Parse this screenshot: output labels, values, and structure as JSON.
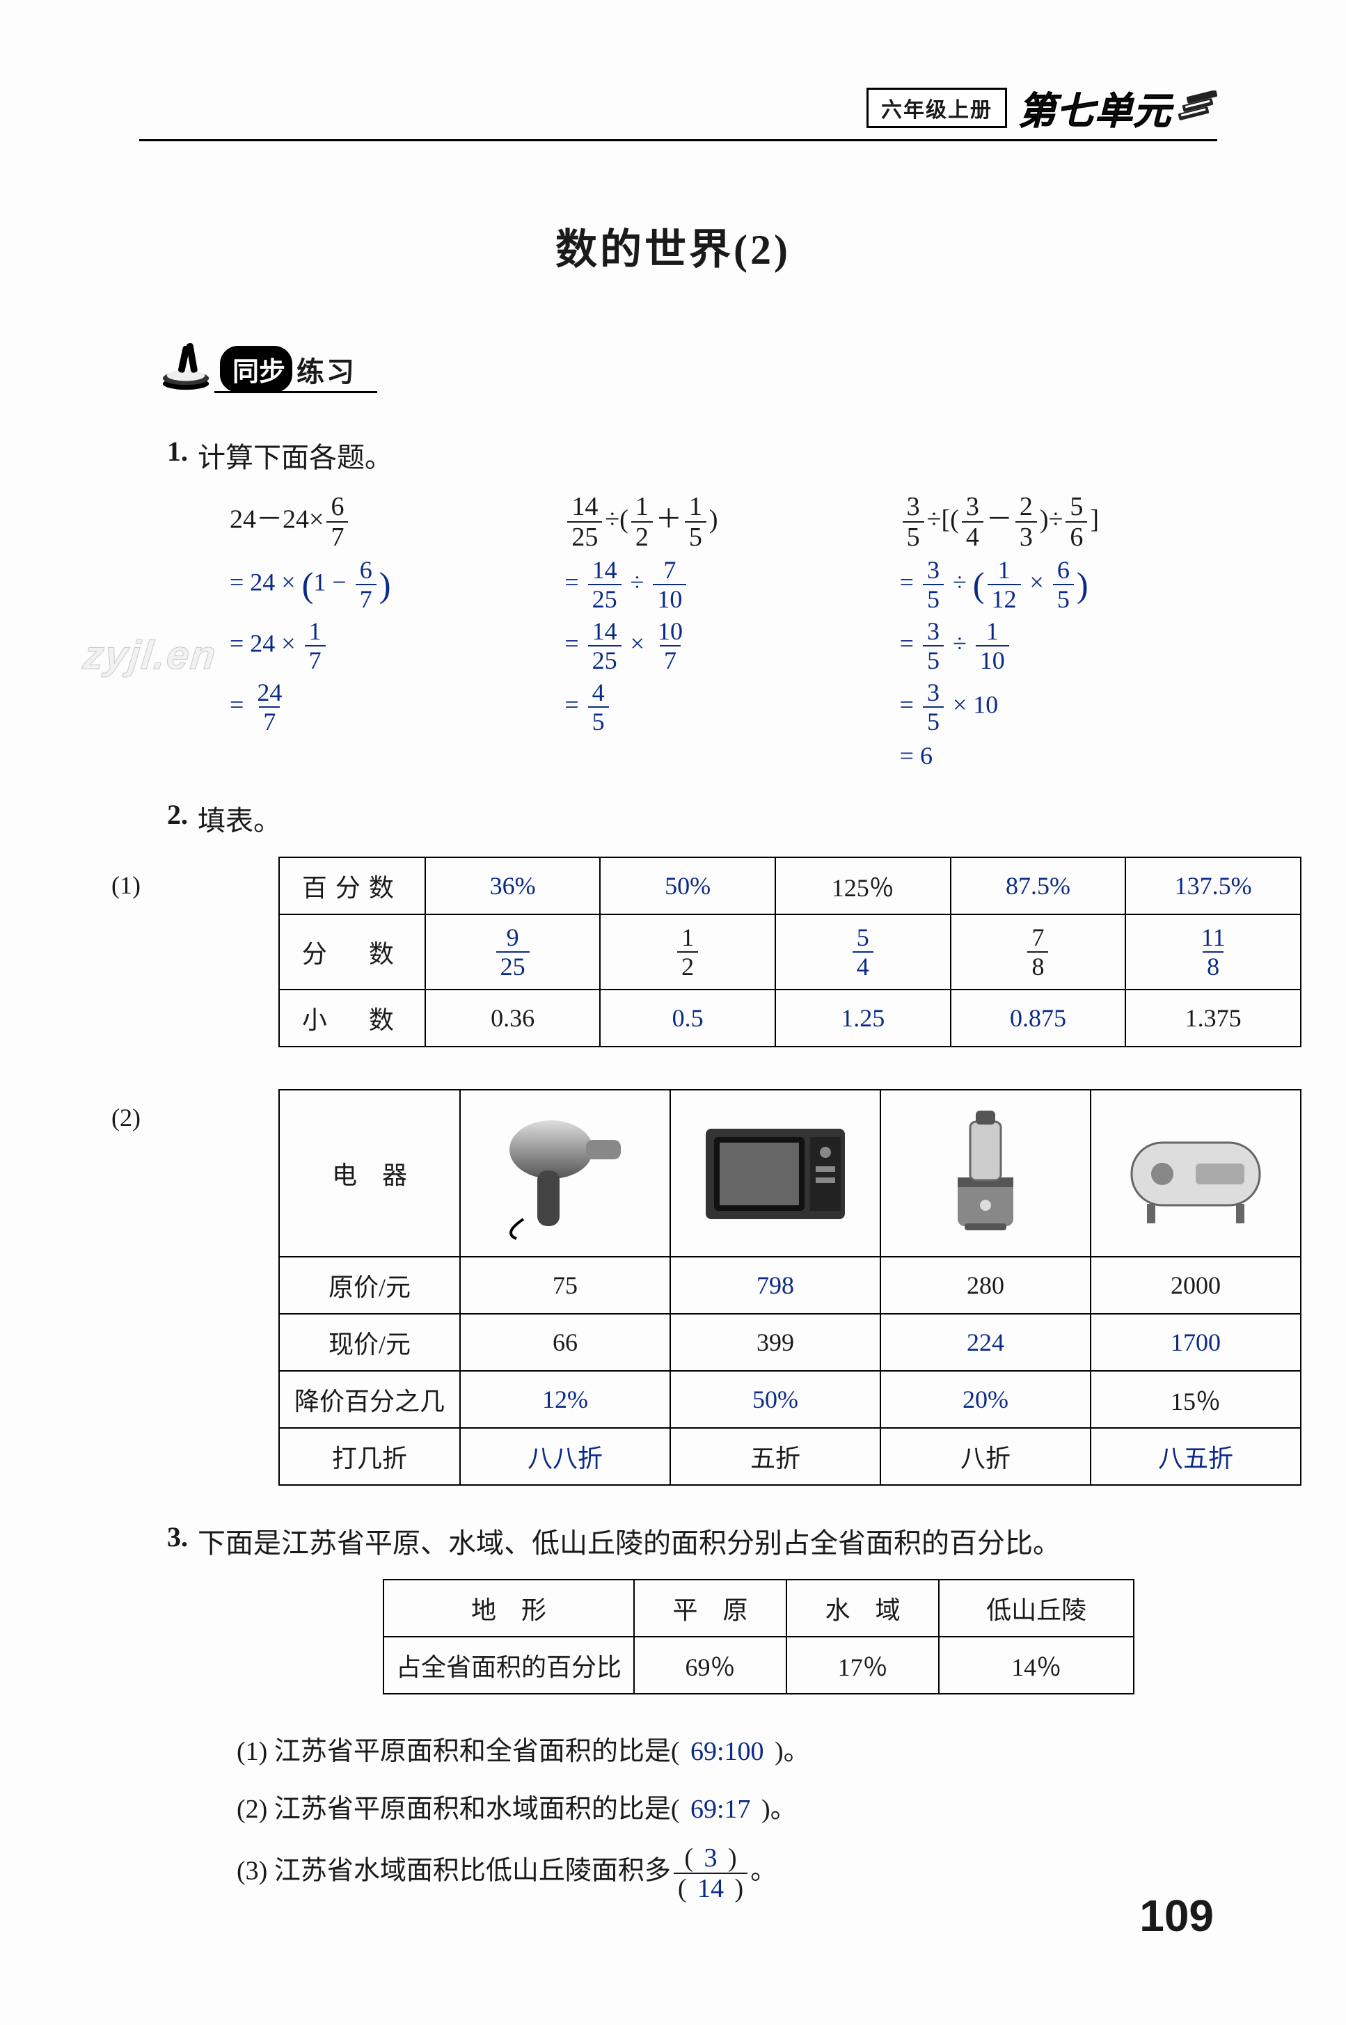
{
  "header": {
    "grade_label": "六年级上册",
    "unit_label": "第七单元"
  },
  "page_title": "数的世界(2)",
  "section_label": {
    "dark": "同步",
    "light": "练习"
  },
  "watermark": "zyjl.en",
  "colors": {
    "answer": "#0a2a88",
    "text": "#1a1a1a",
    "table_border": "#000000",
    "background": "#fdfdfd"
  },
  "problems": {
    "p1": {
      "num": "1.",
      "text": "计算下面各题。",
      "cols": [
        {
          "given": {
            "raw": "24－24×",
            "frac": [
              "6",
              "7"
            ]
          },
          "steps": [
            {
              "pre": "= 24 × ",
              "paren_l": "(",
              "mid": "1 − ",
              "frac": [
                "6",
                "7"
              ],
              "paren_r": ")"
            },
            {
              "pre": "= 24 × ",
              "frac": [
                "1",
                "7"
              ]
            },
            {
              "pre": "= ",
              "frac": [
                "24",
                "7"
              ]
            }
          ]
        },
        {
          "given": {
            "frac1": [
              "14",
              "25"
            ],
            "mid": "÷(",
            "frac2": [
              "1",
              "2"
            ],
            "mid2": "＋",
            "frac3": [
              "1",
              "5"
            ],
            "end": ")"
          },
          "steps": [
            {
              "pre": "= ",
              "frac1": [
                "14",
                "25"
              ],
              "mid": " ÷ ",
              "frac2": [
                "7",
                "10"
              ]
            },
            {
              "pre": "= ",
              "frac1": [
                "14",
                "25"
              ],
              "mid": " × ",
              "frac2": [
                "10",
                "7"
              ]
            },
            {
              "pre": "= ",
              "frac1": [
                "4",
                "5"
              ]
            }
          ]
        },
        {
          "given": {
            "frac1": [
              "3",
              "5"
            ],
            "mid": "÷[(",
            "frac2": [
              "3",
              "4"
            ],
            "mid2": "－",
            "frac3": [
              "2",
              "3"
            ],
            "mid3": ")÷",
            "frac4": [
              "5",
              "6"
            ],
            "end": "]"
          },
          "steps": [
            {
              "pre": "= ",
              "frac1": [
                "3",
                "5"
              ],
              "mid": " ÷ ",
              "paren_l": "(",
              "frac2": [
                "1",
                "12"
              ],
              "mid2": " × ",
              "frac3": [
                "6",
                "5"
              ],
              "paren_r": ")"
            },
            {
              "pre": "= ",
              "frac1": [
                "3",
                "5"
              ],
              "mid": " ÷ ",
              "frac2": [
                "1",
                "10"
              ]
            },
            {
              "pre": "= ",
              "frac1": [
                "3",
                "5"
              ],
              "mid": " × 10"
            },
            {
              "pre": "= 6"
            }
          ]
        }
      ]
    },
    "p2": {
      "num": "2.",
      "text": "填表。",
      "t1": {
        "label": "(1)",
        "rows": [
          {
            "h": "百分数",
            "cells": [
              "36%",
              "50%",
              "125％",
              "87.5%",
              "137.5%"
            ],
            "blue": [
              true,
              true,
              false,
              true,
              true
            ]
          },
          {
            "h": "分　数",
            "cells": [
              [
                "9",
                "25"
              ],
              [
                "1",
                "2"
              ],
              [
                "5",
                "4"
              ],
              [
                "7",
                "8"
              ],
              [
                "11",
                "8"
              ]
            ],
            "blue": [
              true,
              false,
              true,
              false,
              true
            ]
          },
          {
            "h": "小　数",
            "cells": [
              "0.36",
              "0.5",
              "1.25",
              "0.875",
              "1.375"
            ],
            "blue": [
              false,
              true,
              true,
              true,
              false
            ]
          }
        ]
      },
      "t2": {
        "label": "(2)",
        "header_cells": [
          "电　器",
          "hairdryer",
          "microwave",
          "blender",
          "heater"
        ],
        "rows": [
          {
            "h": "原价/元",
            "cells": [
              "75",
              "798",
              "280",
              "2000"
            ],
            "blue": [
              false,
              true,
              false,
              false
            ]
          },
          {
            "h": "现价/元",
            "cells": [
              "66",
              "399",
              "224",
              "1700"
            ],
            "blue": [
              false,
              false,
              true,
              true
            ]
          },
          {
            "h": "降价百分之几",
            "cells": [
              "12%",
              "50%",
              "20%",
              "15％"
            ],
            "blue": [
              true,
              true,
              true,
              false
            ]
          },
          {
            "h": "打几折",
            "cells": [
              "八八折",
              "五折",
              "八折",
              "八五折"
            ],
            "blue": [
              true,
              false,
              false,
              true
            ]
          }
        ]
      }
    },
    "p3": {
      "num": "3.",
      "text": "下面是江苏省平原、水域、低山丘陵的面积分别占全省面积的百分比。",
      "table": {
        "headers": [
          "地　形",
          "平　原",
          "水　域",
          "低山丘陵"
        ],
        "row_label": "占全省面积的百分比",
        "cells": [
          "69％",
          "17％",
          "14％"
        ]
      },
      "subs": [
        {
          "label": "(1)",
          "text_l": "江苏省平原面积和全省面积的比是(",
          "ans": "69:100",
          "text_r": ")。"
        },
        {
          "label": "(2)",
          "text_l": "江苏省平原面积和水域面积的比是(",
          "ans": "69:17",
          "text_r": ")。"
        },
        {
          "label": "(3)",
          "text_l": "江苏省水域面积比低山丘陵面积多",
          "frac_n_l": "(",
          "frac_n": "3",
          "frac_n_r": ")",
          "frac_d_l": "(",
          "frac_d": "14",
          "frac_d_r": ")",
          "text_r": "。"
        }
      ]
    }
  },
  "page_number": "109"
}
